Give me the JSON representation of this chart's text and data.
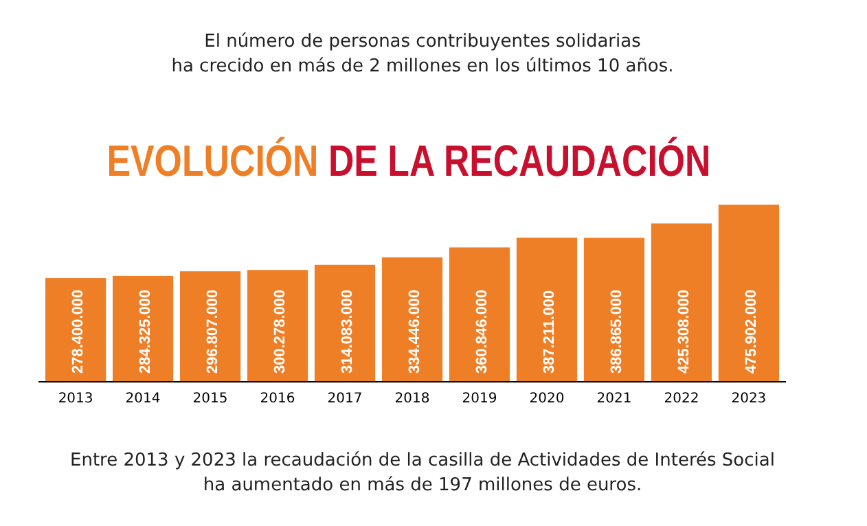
{
  "chart_data": {
    "type": "bar",
    "title": "EVOLUCIÓN DE LA RECAUDACIÓN",
    "subtitle": "El número de personas contribuyentes solidarias\nha crecido en más de 2 millones en los últimos 10 años.",
    "annotations": [
      "Entre 2013 y 2023 la recaudación de la casilla de Actividades de Interés Social\nha aumentado en más de 197 millones de euros."
    ],
    "categories": [
      "2013",
      "2014",
      "2015",
      "2016",
      "2017",
      "2018",
      "2019",
      "2020",
      "2021",
      "2022",
      "2023"
    ],
    "values": [
      278400000,
      284325000,
      296807000,
      300278000,
      314083000,
      334446000,
      360846000,
      387211000,
      386865000,
      425308000,
      475902000
    ],
    "value_labels": [
      "278.400.000",
      "284.325.000",
      "296.807.000",
      "300.278.000",
      "314.083.000",
      "334.446.000",
      "360.846.000",
      "387.211.000",
      "386.865.000",
      "425.308.000",
      "475.902.000"
    ],
    "color": "#ef7f26"
  }
}
